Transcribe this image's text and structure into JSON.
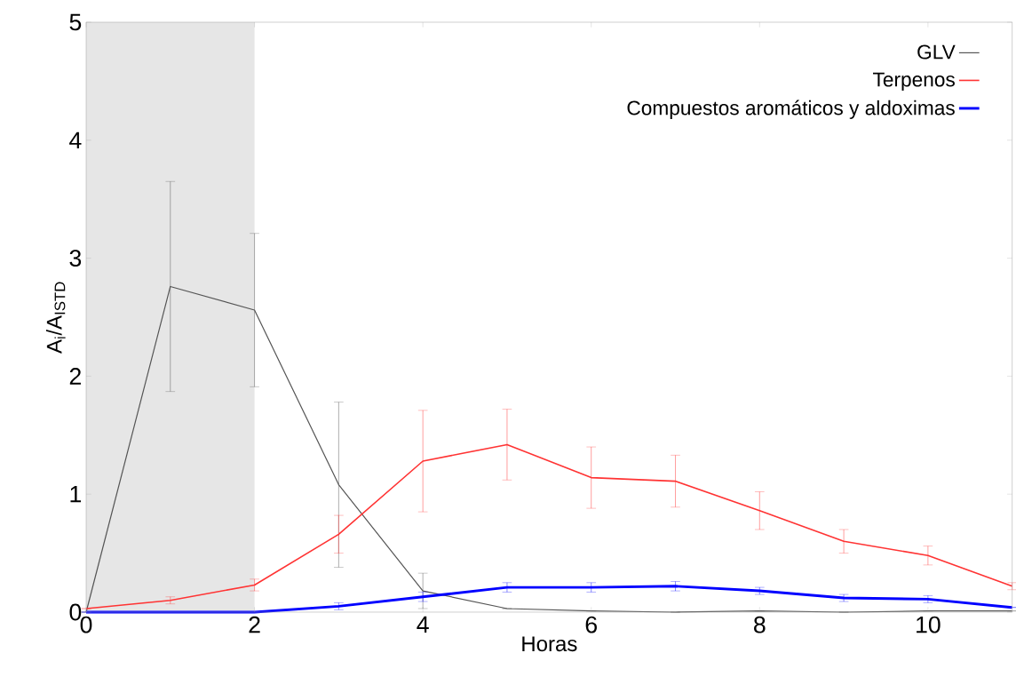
{
  "chart_data": {
    "type": "line",
    "xlabel": "Horas",
    "ylabel": "A$_{i}$/A$_{ISTD}$",
    "x": [
      0,
      1,
      2,
      3,
      4,
      5,
      6,
      7,
      8,
      9,
      10,
      11
    ],
    "xlim": [
      0,
      11
    ],
    "ylim": [
      0,
      5
    ],
    "xticks": [
      0,
      2,
      4,
      6,
      8,
      10
    ],
    "yticks": [
      0,
      1,
      2,
      3,
      4,
      5
    ],
    "grid": false,
    "legend": "top right",
    "marker": "none",
    "line_style": "solid",
    "bands": [
      {
        "axis": "x",
        "from": 0,
        "to": 2,
        "color": "#e6e6e6"
      }
    ],
    "series": [
      {
        "name": "GLV",
        "color": "#555555",
        "values": [
          0,
          2.76,
          2.56,
          1.08,
          0.18,
          0.03,
          0.01,
          0,
          0.01,
          0,
          0.01,
          0.01
        ],
        "errors": [
          null,
          0.89,
          0.65,
          0.7,
          0.15,
          null,
          null,
          null,
          null,
          null,
          null,
          null
        ]
      },
      {
        "name": "Terpenos",
        "color": "#ff3333",
        "values": [
          0.03,
          0.1,
          0.23,
          0.66,
          1.28,
          1.42,
          1.14,
          1.11,
          0.86,
          0.6,
          0.48,
          0.22
        ],
        "errors": [
          null,
          0.03,
          0.05,
          0.16,
          0.43,
          0.3,
          0.26,
          0.22,
          0.16,
          0.1,
          0.08,
          0.03
        ]
      },
      {
        "name": "Compuestos aromáticos y aldoximas",
        "color": "#0000ff",
        "values": [
          0,
          0,
          0,
          0.05,
          0.13,
          0.21,
          0.21,
          0.22,
          0.18,
          0.12,
          0.11,
          0.04
        ],
        "errors": [
          null,
          null,
          null,
          0.03,
          0.04,
          0.04,
          0.04,
          0.04,
          0.03,
          0.03,
          0.03,
          null
        ]
      }
    ]
  }
}
